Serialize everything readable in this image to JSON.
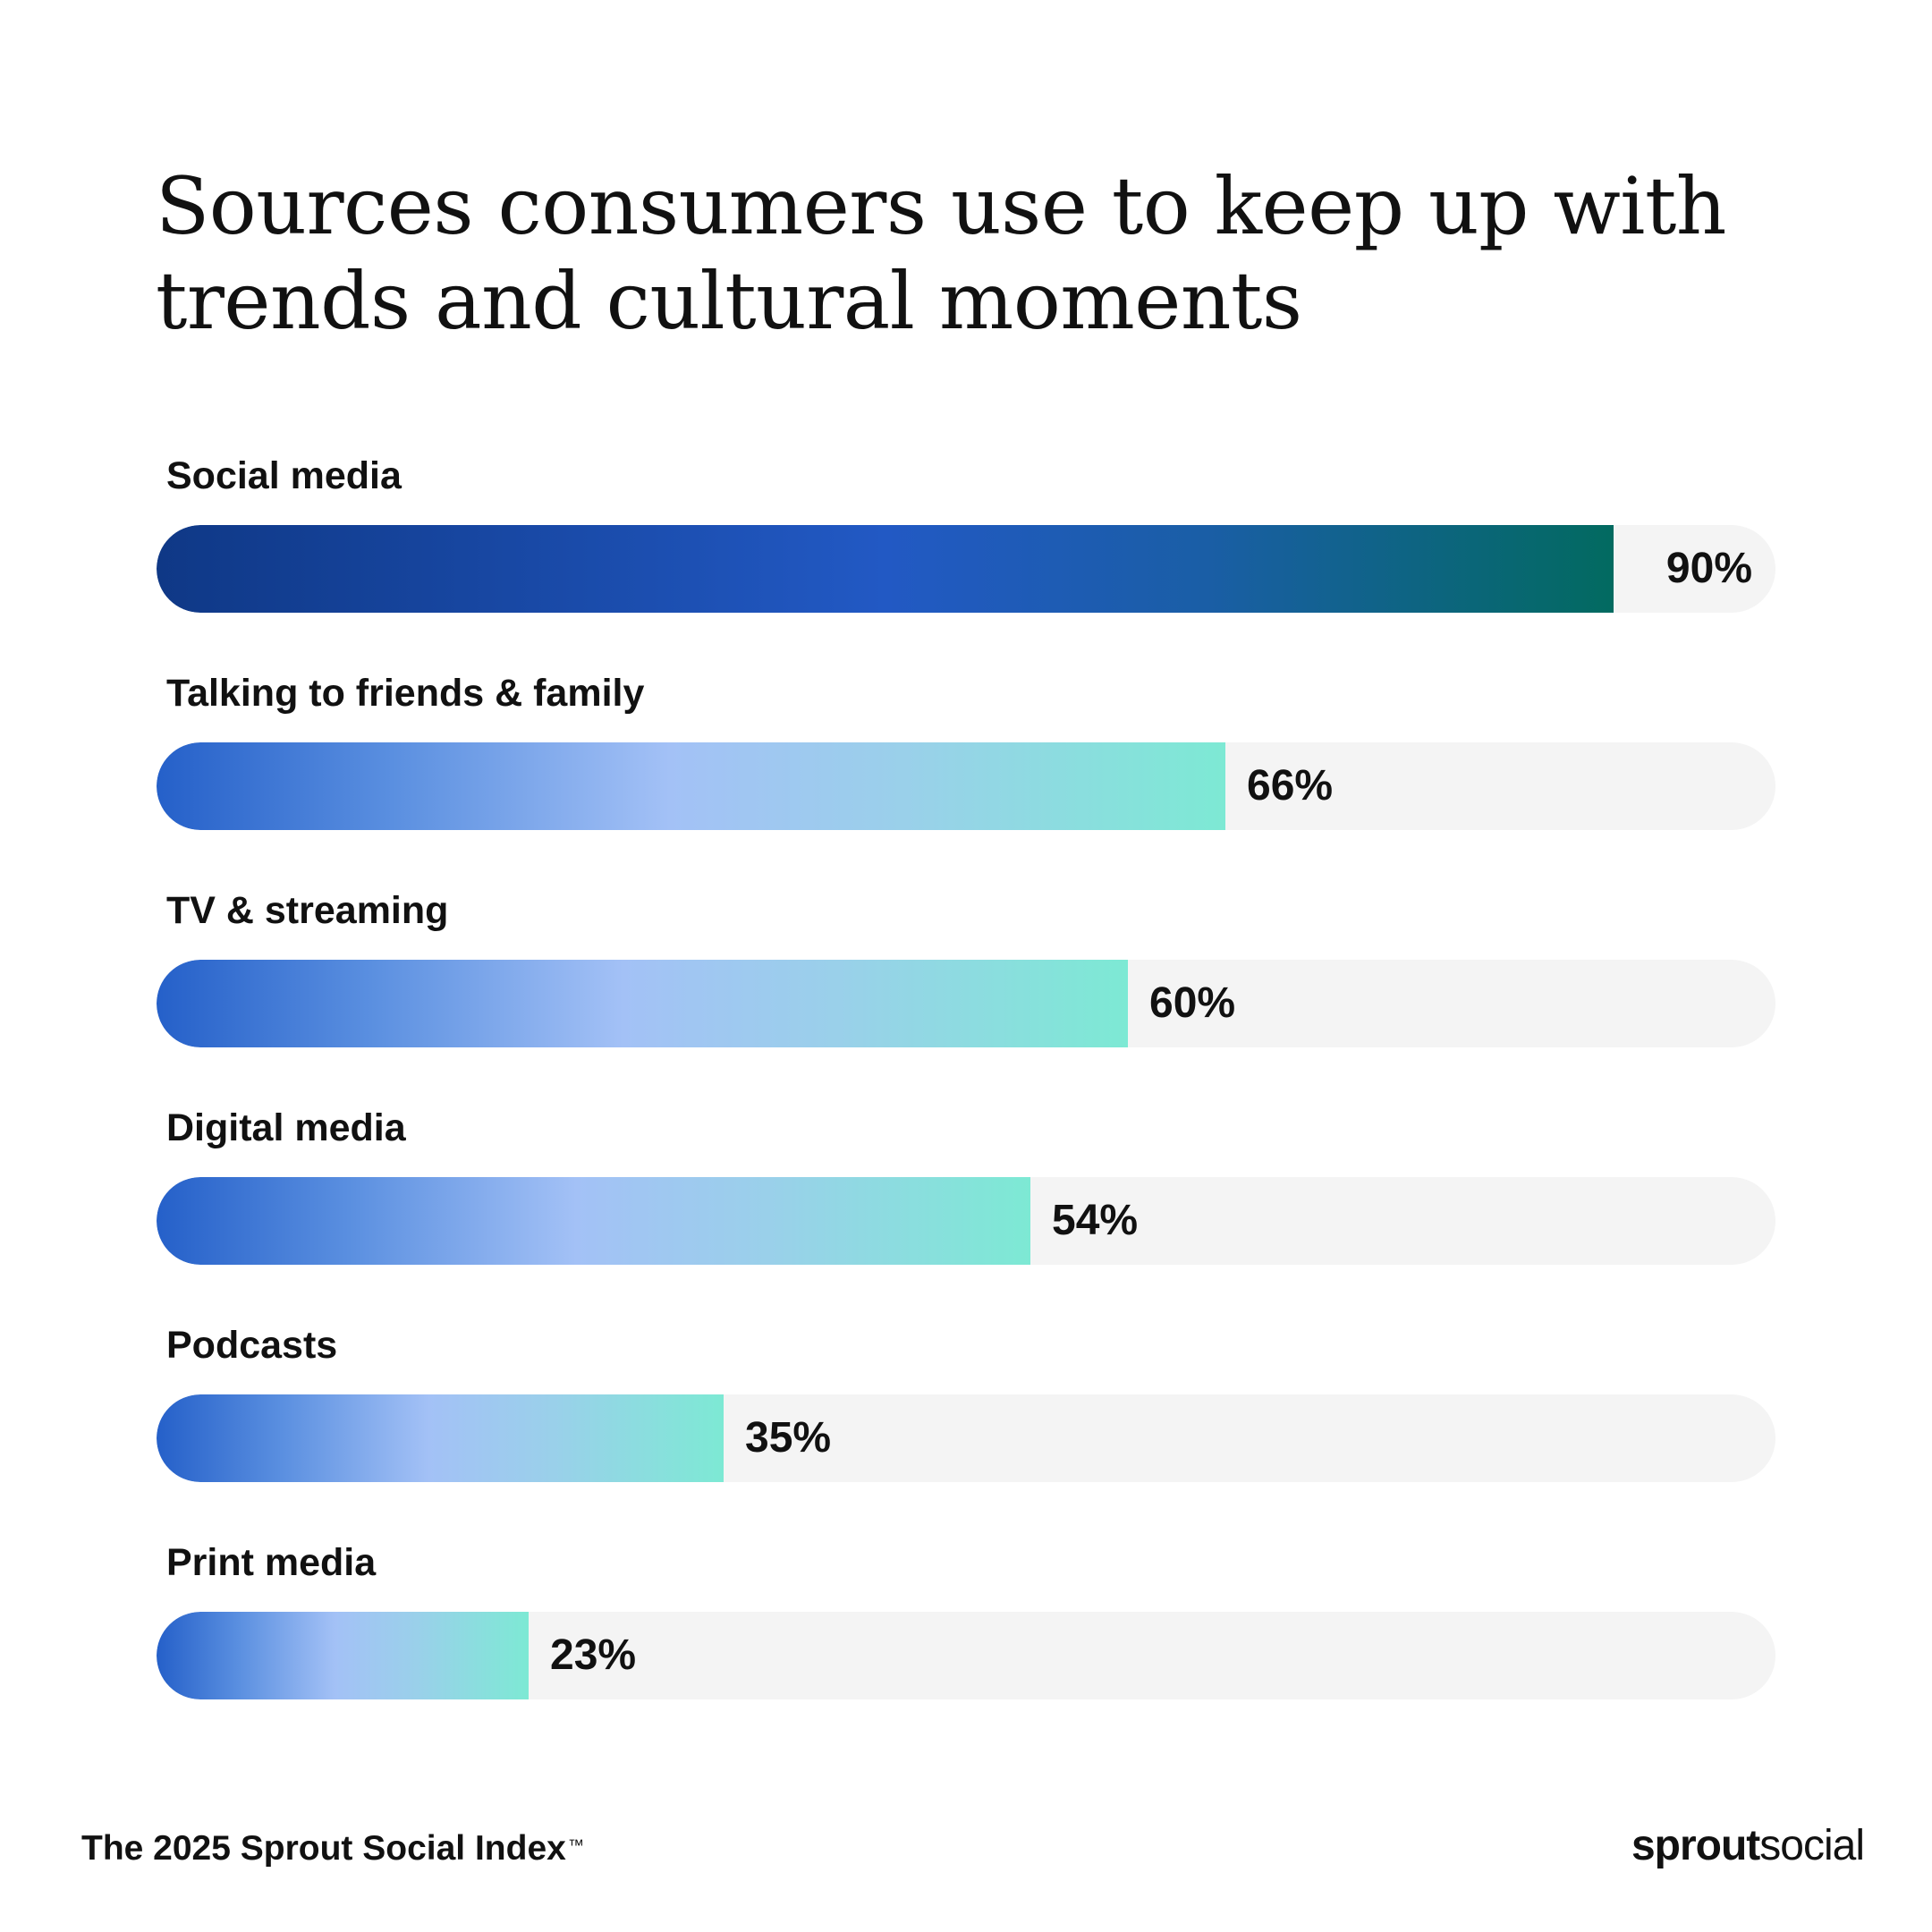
{
  "chart_data": {
    "type": "bar",
    "orientation": "horizontal",
    "title": "Sources consumers use to keep up with trends and cultural moments",
    "title_lines": [
      "Sources consumers use to keep up with",
      "trends and cultural moments"
    ],
    "categories": [
      "Social media",
      "Talking to friends & family",
      "TV & streaming",
      "Digital media",
      "Podcasts",
      "Print media"
    ],
    "values": [
      90,
      66,
      60,
      54,
      35,
      23
    ],
    "value_labels": [
      "90%",
      "66%",
      "60%",
      "54%",
      "35%",
      "23%"
    ],
    "xlim": [
      0,
      100
    ],
    "unit": "%",
    "grid": false,
    "legend": "none",
    "colors": {
      "track": "#f4f4f4",
      "highlight_start": "#0f3886",
      "highlight_mid": "#2259c4",
      "highlight_end": "#026a60",
      "other_start": "#2560c9",
      "other_mid": "#a3c1f6",
      "other_end": "#7de9d4"
    }
  },
  "footer": {
    "source": "The 2025 Sprout Social Index",
    "trademark": "™"
  },
  "logo": {
    "bold": "sprout",
    "light": "social"
  }
}
